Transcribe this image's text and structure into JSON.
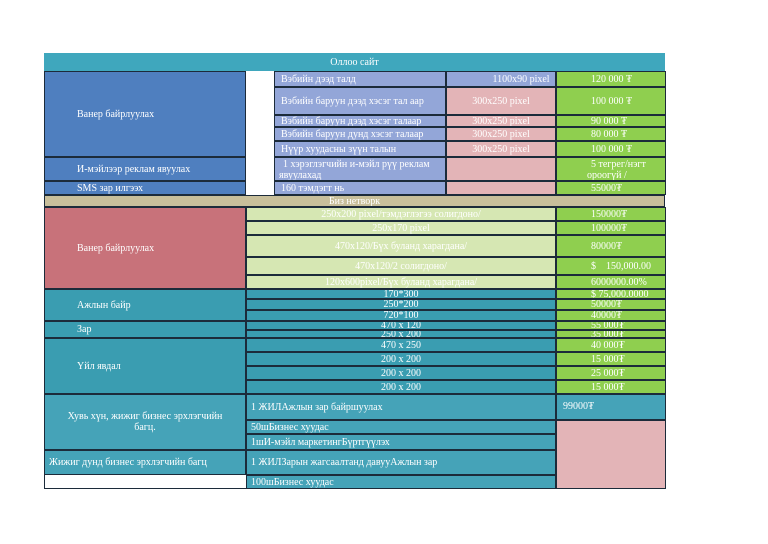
{
  "title": "Оллоо сайт",
  "section1": {
    "left_label": "Ванер байрлуулах",
    "rows": [
      {
        "place": "Вэбийн дээд талд",
        "size": "1100x90 pixel",
        "price": "120 000 ₮"
      },
      {
        "place": "Вэбийн баруун дээд хэсэг тал аар",
        "size": "300x250 pixel",
        "price": "100 000 ₮"
      },
      {
        "place": "Вэбийн баруун дээд хэсэг талаар",
        "size": "300x250 pixel",
        "price": "90 000 ₮"
      },
      {
        "place": "Вэбийн баруун дунд хэсэг талаар",
        "size": "300x250 pixel",
        "price": "80 000 ₮"
      },
      {
        "place": "Нүүр хуудасны зүүн талын",
        "size": "300x250 pixel",
        "price": "100 000 ₮"
      }
    ]
  },
  "email_row": {
    "left": "И-мэйлээр реклам явуулах",
    "place_line1": "1 хэрэглэгчийн и-мэйл рүү реклам",
    "place_line2": "явуулахад",
    "price_line1": "5 тегрег/нэгт",
    "price_line2": "ороогүй /"
  },
  "sms_row": {
    "left": "SMS зар илгээх",
    "place": "160 тэмдэгт нь",
    "price": "55000₮"
  },
  "network_title": "Биз нетворк",
  "section2": {
    "left_label": "Ванер байрлуулах",
    "rows": [
      {
        "desc": "250x200 pixel/тэмдэглэгээ солигдоно/",
        "price": "150000₮"
      },
      {
        "desc": "250x170 pixel",
        "price": "100000₮"
      },
      {
        "desc": "470x120/Бүх буланд харагдана/",
        "price": "80000₮"
      },
      {
        "desc": "470x120/2 солигдоно/",
        "price_symbol": "$",
        "price": "150,000.00"
      },
      {
        "desc": "120x600pixel/Бүх буланд харагдана/",
        "price": "6000000.00%"
      }
    ]
  },
  "ajil_row": {
    "left": "Ажлын байр",
    "sizes": [
      "170*300",
      "250*200",
      "720*100"
    ],
    "prices": [
      "$   75,000.0000",
      "50000₮",
      "40000₮"
    ]
  },
  "zar_row": {
    "left": "Зар",
    "sizes": [
      "470 x 120",
      "250 x 200"
    ],
    "prices": [
      "55 000₮",
      "35 000₮"
    ]
  },
  "yil_row": {
    "left": "Үйл явдал",
    "sizes": [
      "470 x 250",
      "200 x 200",
      "200 x 200",
      "200 x 200"
    ],
    "prices": [
      "40 000₮",
      "15 000₮",
      "25 000₮",
      "15 000₮"
    ]
  },
  "package1": {
    "left_line1": "Хувь хүн, жижиг бизнес эрхлэгчийн",
    "left_line2": "багц.",
    "items": [
      "1 ЖИЛАжлын зар байршуулах",
      "50шБизнес хуудас",
      "1шИ-мэйл маркетингБүртгүүлэх"
    ],
    "price": "99000₮"
  },
  "package2": {
    "left": "Жижиг дунд бизнес эрхлэгчийн багц",
    "items": [
      "1 ЖИЛЗарын жагсаалтанд давууАжлын зар",
      "100шБизнес хуудас"
    ]
  }
}
